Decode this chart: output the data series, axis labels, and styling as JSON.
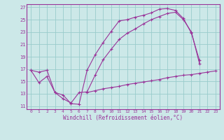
{
  "title": "",
  "xlabel": "Windchill (Refroidissement éolien,°C)",
  "bg_color": "#cce8e8",
  "grid_color": "#99cccc",
  "line_color": "#993399",
  "xlim": [
    -0.5,
    23.5
  ],
  "ylim": [
    10.5,
    27.5
  ],
  "yticks": [
    11,
    13,
    15,
    17,
    19,
    21,
    23,
    25,
    27
  ],
  "xticks": [
    0,
    1,
    2,
    3,
    4,
    5,
    6,
    7,
    8,
    9,
    10,
    11,
    12,
    13,
    14,
    15,
    16,
    17,
    18,
    19,
    20,
    21,
    22,
    23
  ],
  "line1_x": [
    0,
    1,
    2,
    3,
    4,
    5,
    6,
    7,
    8,
    9,
    10,
    11,
    12,
    13,
    14,
    15,
    16,
    17,
    18,
    19,
    20,
    21
  ],
  "line1_y": [
    16.8,
    14.8,
    15.8,
    13.2,
    12.8,
    11.4,
    11.3,
    16.8,
    19.3,
    21.3,
    23.1,
    24.8,
    25.0,
    25.4,
    25.7,
    26.1,
    26.7,
    26.8,
    26.5,
    25.2,
    22.8,
    18.4
  ],
  "line2_x": [
    0,
    1,
    2,
    3,
    4,
    5,
    6,
    7,
    8,
    9,
    10,
    11,
    12,
    13,
    14,
    15,
    16,
    17,
    18,
    19,
    20,
    21,
    22,
    23
  ],
  "line2_y": [
    null,
    null,
    null,
    13.2,
    null,
    null,
    null,
    null,
    null,
    null,
    null,
    null,
    null,
    null,
    null,
    null,
    null,
    null,
    null,
    null,
    null,
    null,
    null,
    null
  ],
  "line3_x": [
    0,
    1,
    2,
    3,
    4,
    5,
    6,
    7,
    8,
    9,
    10,
    11,
    12,
    13,
    14,
    15,
    16,
    17,
    18,
    19,
    20,
    21,
    22,
    23
  ],
  "line3_y": [
    16.8,
    16.5,
    16.8,
    13.2,
    12.2,
    11.5,
    13.2,
    13.3,
    16.0,
    18.5,
    20.2,
    21.8,
    22.8,
    23.5,
    24.3,
    25.0,
    25.5,
    26.0,
    26.2,
    25.0,
    23.0,
    17.9,
    null,
    null
  ],
  "line4_x": [
    0,
    1,
    2,
    3,
    4,
    5,
    6,
    7,
    8,
    9,
    10,
    11,
    12,
    13,
    14,
    15,
    16,
    17,
    18,
    19,
    20,
    21,
    22,
    23
  ],
  "line4_y": [
    null,
    null,
    null,
    null,
    null,
    null,
    null,
    13.2,
    13.5,
    13.8,
    14.0,
    14.2,
    14.5,
    14.7,
    14.9,
    15.1,
    15.3,
    15.6,
    15.8,
    16.0,
    16.1,
    16.3,
    16.5,
    16.7
  ]
}
